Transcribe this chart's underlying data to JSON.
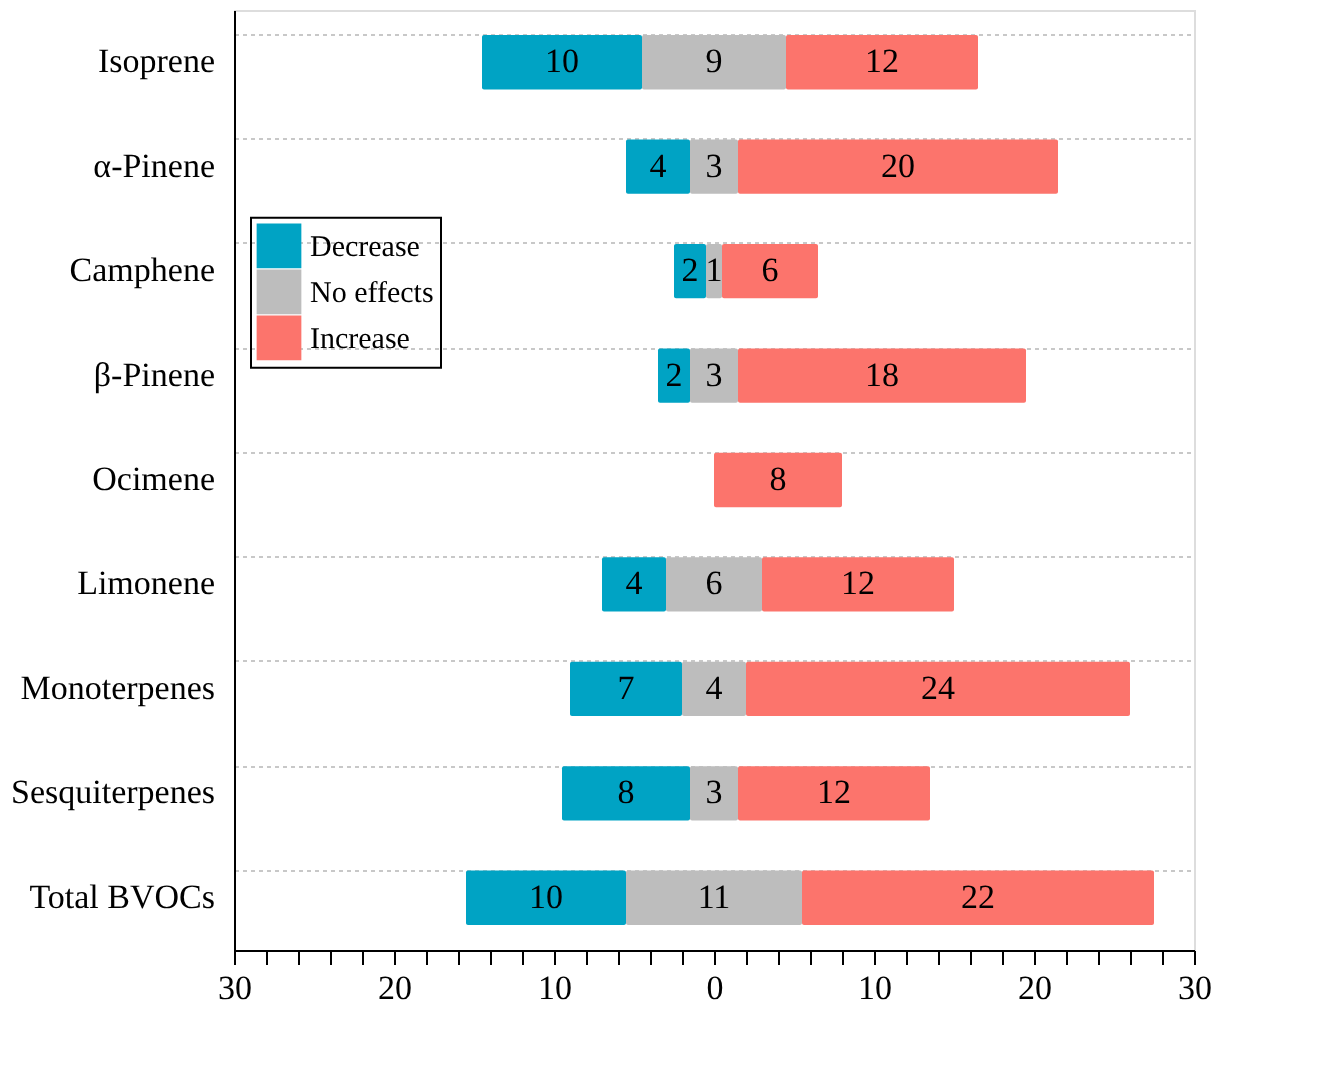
{
  "chart_data": {
    "type": "bar",
    "orientation": "horizontal",
    "categories": [
      "Isoprene",
      "α-Pinene",
      "Camphene",
      "β-Pinene",
      "Ocimene",
      "Limonene",
      "Monoterpenes",
      "Sesquiterpenes",
      "Total BVOCs"
    ],
    "series": [
      {
        "name": "Decrease",
        "color": "#00a3c4",
        "values": [
          10,
          4,
          2,
          2,
          null,
          4,
          7,
          8,
          10
        ],
        "base": [
          -14.5,
          -5.5,
          -2.5,
          -3.5,
          null,
          -7,
          -9,
          -9.5,
          -15.5
        ]
      },
      {
        "name": "No effects",
        "color": "#bdbdbd",
        "values": [
          9,
          3,
          1,
          3,
          null,
          6,
          4,
          3,
          11
        ],
        "base": [
          -4.5,
          -1.5,
          -0.5,
          -1.5,
          null,
          -3,
          -2,
          -1.5,
          -5.5
        ]
      },
      {
        "name": "Increase",
        "color": "#fc746c",
        "values": [
          12,
          20,
          6,
          18,
          8,
          12,
          24,
          12,
          22
        ],
        "base": [
          4.5,
          1.5,
          0.5,
          1.5,
          0,
          3,
          2,
          1.5,
          5.5
        ]
      }
    ],
    "xlim": [
      -30,
      30
    ],
    "xticks": [
      {
        "value": -30,
        "label": "30"
      },
      {
        "value": -28,
        "label": null
      },
      {
        "value": -26,
        "label": null
      },
      {
        "value": -24,
        "label": null
      },
      {
        "value": -22,
        "label": null
      },
      {
        "value": -20,
        "label": "20"
      },
      {
        "value": -18,
        "label": null
      },
      {
        "value": -16,
        "label": null
      },
      {
        "value": -14,
        "label": null
      },
      {
        "value": -12,
        "label": null
      },
      {
        "value": -10,
        "label": "10"
      },
      {
        "value": -8,
        "label": null
      },
      {
        "value": -6,
        "label": null
      },
      {
        "value": -4,
        "label": null
      },
      {
        "value": -2,
        "label": null
      },
      0,
      {
        "value": 2,
        "label": null
      },
      {
        "value": 4,
        "label": null
      },
      {
        "value": 6,
        "label": null
      },
      {
        "value": 8,
        "label": null
      },
      10,
      {
        "value": 12,
        "label": null
      },
      {
        "value": 14,
        "label": null
      },
      {
        "value": 16,
        "label": null
      },
      {
        "value": 18,
        "label": null
      },
      20,
      {
        "value": 22,
        "label": null
      },
      {
        "value": 24,
        "label": null
      },
      {
        "value": 26,
        "label": null
      },
      {
        "value": 28,
        "label": null
      },
      30
    ],
    "data_labels": true,
    "grid": "y",
    "legend": "top left"
  }
}
